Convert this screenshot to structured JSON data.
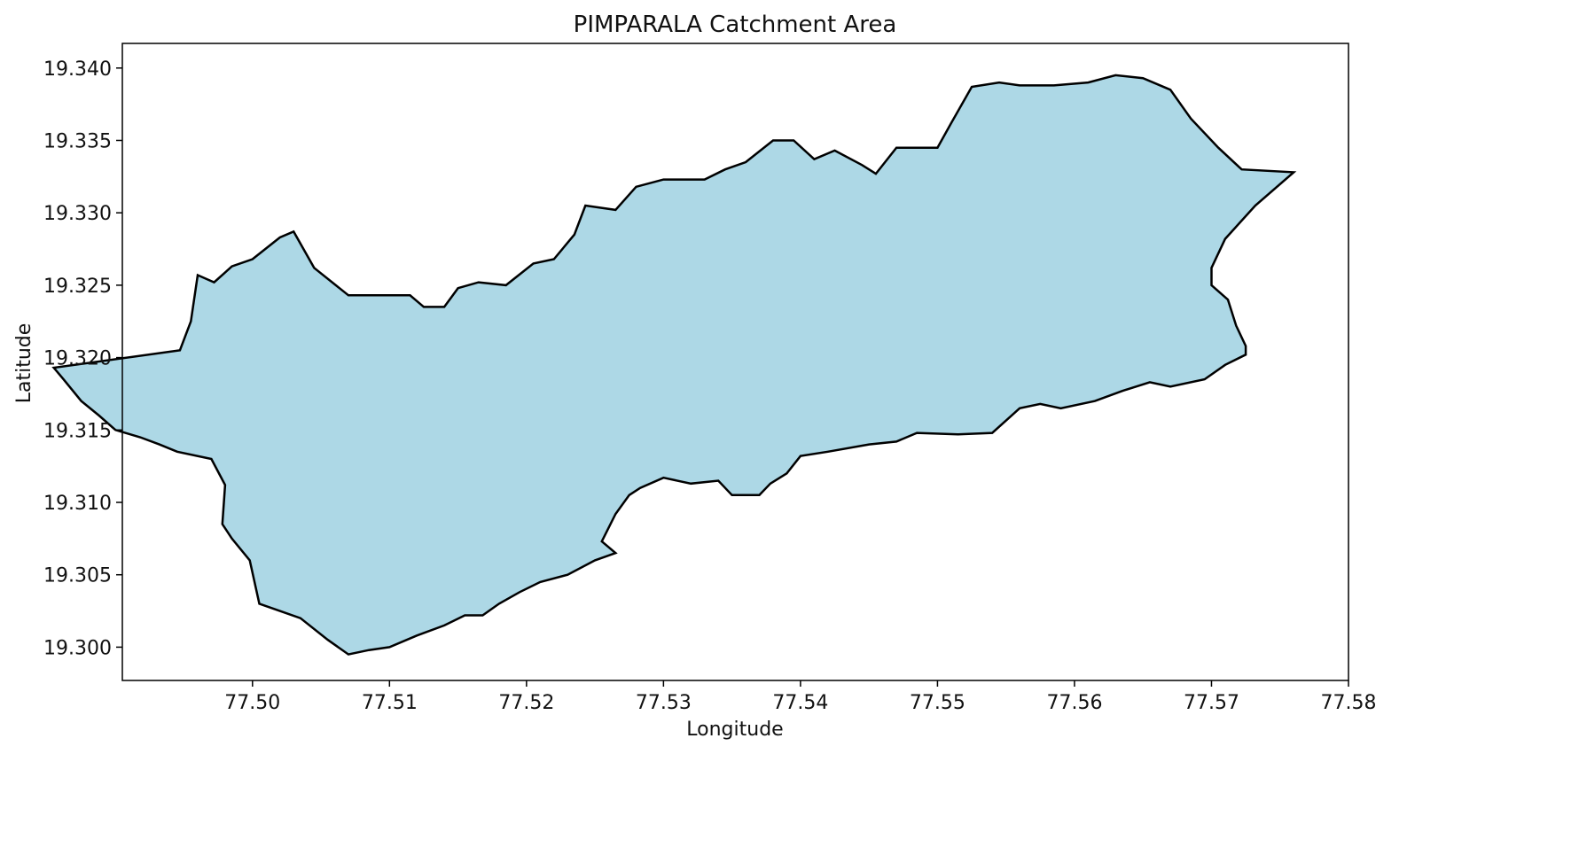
{
  "chart_data": {
    "type": "map",
    "title": "PIMPARALA Catchment Area",
    "xlabel": "Longitude",
    "ylabel": "Latitude",
    "xlim": [
      77.4905,
      77.58
    ],
    "ylim": [
      19.2977,
      19.3417
    ],
    "x_ticks": [
      {
        "value": 77.5,
        "label": "77.50"
      },
      {
        "value": 77.51,
        "label": "77.51"
      },
      {
        "value": 77.52,
        "label": "77.52"
      },
      {
        "value": 77.53,
        "label": "77.53"
      },
      {
        "value": 77.54,
        "label": "77.54"
      },
      {
        "value": 77.55,
        "label": "77.55"
      },
      {
        "value": 77.56,
        "label": "77.56"
      },
      {
        "value": 77.57,
        "label": "77.57"
      },
      {
        "value": 77.58,
        "label": "77.58"
      }
    ],
    "y_ticks": [
      {
        "value": 19.3,
        "label": "19.300"
      },
      {
        "value": 19.305,
        "label": "19.305"
      },
      {
        "value": 19.31,
        "label": "19.310"
      },
      {
        "value": 19.315,
        "label": "19.315"
      },
      {
        "value": 19.32,
        "label": "19.320"
      },
      {
        "value": 19.325,
        "label": "19.325"
      },
      {
        "value": 19.33,
        "label": "19.330"
      },
      {
        "value": 19.335,
        "label": "19.335"
      },
      {
        "value": 19.34,
        "label": "19.340"
      }
    ],
    "grid": false,
    "fill_color": "#add8e6",
    "edge_color": "#000000",
    "boundary": [
      [
        77.4947,
        19.3205
      ],
      [
        77.4955,
        19.3225
      ],
      [
        77.496,
        19.3257
      ],
      [
        77.4972,
        19.3252
      ],
      [
        77.4985,
        19.3263
      ],
      [
        77.5,
        19.3268
      ],
      [
        77.502,
        19.3283
      ],
      [
        77.503,
        19.3287
      ],
      [
        77.5045,
        19.3262
      ],
      [
        77.507,
        19.3243
      ],
      [
        77.509,
        19.3243
      ],
      [
        77.5115,
        19.3243
      ],
      [
        77.5125,
        19.3235
      ],
      [
        77.514,
        19.3235
      ],
      [
        77.515,
        19.3248
      ],
      [
        77.5165,
        19.3252
      ],
      [
        77.5185,
        19.325
      ],
      [
        77.5205,
        19.3265
      ],
      [
        77.522,
        19.3268
      ],
      [
        77.5235,
        19.3285
      ],
      [
        77.5243,
        19.3305
      ],
      [
        77.5265,
        19.3302
      ],
      [
        77.528,
        19.3318
      ],
      [
        77.53,
        19.3323
      ],
      [
        77.533,
        19.3323
      ],
      [
        77.5345,
        19.333
      ],
      [
        77.536,
        19.3335
      ],
      [
        77.538,
        19.335
      ],
      [
        77.5395,
        19.335
      ],
      [
        77.541,
        19.3337
      ],
      [
        77.5425,
        19.3343
      ],
      [
        77.5445,
        19.3333
      ],
      [
        77.5455,
        19.3327
      ],
      [
        77.547,
        19.3345
      ],
      [
        77.55,
        19.3345
      ],
      [
        77.551,
        19.3362
      ],
      [
        77.5525,
        19.3387
      ],
      [
        77.5545,
        19.339
      ],
      [
        77.556,
        19.3388
      ],
      [
        77.5585,
        19.3388
      ],
      [
        77.561,
        19.339
      ],
      [
        77.563,
        19.3395
      ],
      [
        77.565,
        19.3393
      ],
      [
        77.567,
        19.3385
      ],
      [
        77.5685,
        19.3365
      ],
      [
        77.5705,
        19.3345
      ],
      [
        77.5722,
        19.333
      ],
      [
        77.576,
        19.3328
      ],
      [
        77.5732,
        19.3305
      ],
      [
        77.571,
        19.3282
      ],
      [
        77.57,
        19.3262
      ],
      [
        77.57,
        19.325
      ],
      [
        77.5712,
        19.324
      ],
      [
        77.5718,
        19.3222
      ],
      [
        77.5725,
        19.3208
      ],
      [
        77.5725,
        19.3202
      ],
      [
        77.571,
        19.3195
      ],
      [
        77.5695,
        19.3185
      ],
      [
        77.567,
        19.318
      ],
      [
        77.5655,
        19.3183
      ],
      [
        77.5635,
        19.3177
      ],
      [
        77.5615,
        19.317
      ],
      [
        77.559,
        19.3165
      ],
      [
        77.5575,
        19.3168
      ],
      [
        77.556,
        19.3165
      ],
      [
        77.554,
        19.3148
      ],
      [
        77.5515,
        19.3147
      ],
      [
        77.5485,
        19.3148
      ],
      [
        77.547,
        19.3142
      ],
      [
        77.545,
        19.314
      ],
      [
        77.542,
        19.3135
      ],
      [
        77.54,
        19.3132
      ],
      [
        77.539,
        19.312
      ],
      [
        77.5378,
        19.3113
      ],
      [
        77.537,
        19.3105
      ],
      [
        77.535,
        19.3105
      ],
      [
        77.534,
        19.3115
      ],
      [
        77.532,
        19.3113
      ],
      [
        77.53,
        19.3117
      ],
      [
        77.5283,
        19.311
      ],
      [
        77.5275,
        19.3105
      ],
      [
        77.5265,
        19.3092
      ],
      [
        77.5255,
        19.3073
      ],
      [
        77.5265,
        19.3065
      ],
      [
        77.525,
        19.306
      ],
      [
        77.523,
        19.305
      ],
      [
        77.521,
        19.3045
      ],
      [
        77.5195,
        19.3038
      ],
      [
        77.518,
        19.303
      ],
      [
        77.5168,
        19.3022
      ],
      [
        77.5155,
        19.3022
      ],
      [
        77.514,
        19.3015
      ],
      [
        77.512,
        19.3008
      ],
      [
        77.51,
        19.3
      ],
      [
        77.5085,
        19.2998
      ],
      [
        77.507,
        19.2995
      ],
      [
        77.5055,
        19.3005
      ],
      [
        77.5035,
        19.302
      ],
      [
        77.502,
        19.3025
      ],
      [
        77.5005,
        19.303
      ],
      [
        77.4998,
        19.306
      ],
      [
        77.4985,
        19.3075
      ],
      [
        77.4978,
        19.3085
      ],
      [
        77.498,
        19.3112
      ],
      [
        77.497,
        19.313
      ],
      [
        77.4945,
        19.3135
      ],
      [
        77.4932,
        19.314
      ],
      [
        77.4918,
        19.3145
      ],
      [
        77.49,
        19.315
      ],
      [
        77.4888,
        19.316
      ],
      [
        77.4875,
        19.317
      ],
      [
        77.4862,
        19.3185
      ],
      [
        77.4855,
        19.3193
      ],
      [
        77.4947,
        19.3205
      ]
    ]
  }
}
